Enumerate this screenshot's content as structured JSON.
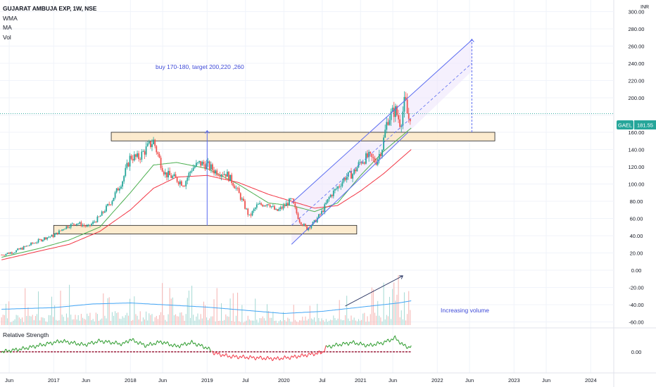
{
  "legend": {
    "title": "GUJARAT AMBUJA EXP, 1W, NSE",
    "indicators": [
      "WMA",
      "MA",
      "Vol"
    ],
    "rs_label": "Relative Strength"
  },
  "currency": "INR",
  "price_label": {
    "ticker": "GAEL",
    "value": "181.55"
  },
  "annotations": {
    "plan": "buy 170-180, target 200,220 ,260",
    "volume_note": "Increasing volume"
  },
  "colors": {
    "up": "#26a69a",
    "down": "#ef5350",
    "wma": "#4caf50",
    "ma": "#f23645",
    "volume_ma": "#42a5f5",
    "channel": "#5b6cf0",
    "box_fill": "#fce8c6",
    "rs_line": "#2e9c2e",
    "rs_neg": "#f23645",
    "annotation_text": "#3f4bd8"
  },
  "chart_data": [
    {
      "type": "candlestick",
      "title": "GUJARAT AMBUJA EXP, 1W, NSE",
      "y_axis": {
        "ticks": [
          300,
          280,
          260,
          240,
          220,
          200,
          180,
          160,
          140,
          120,
          100,
          80,
          60,
          40,
          20,
          0,
          -20,
          -40,
          -60
        ],
        "labels": [
          "300.00",
          "280.00",
          "260.00",
          "240.00",
          "220.00",
          "200.00",
          "",
          "160.00",
          "140.00",
          "120.00",
          "100.00",
          "80.00",
          "60.00",
          "40.00",
          "20.00",
          "0.00",
          "-20.00",
          "-40.00",
          "-60.00"
        ],
        "range": [
          -62,
          302
        ]
      },
      "x_axis": {
        "range": [
          2016.3,
          2024.3
        ],
        "ticks": [
          2016.42,
          2017,
          2017.42,
          2018,
          2018.42,
          2019,
          2019.5,
          2020,
          2020.5,
          2021,
          2021.42,
          2022,
          2022.42,
          2023,
          2023.42,
          2024
        ],
        "labels": [
          "Jun",
          "2017",
          "Jun",
          "2018",
          "Jun",
          "2019",
          "Jul",
          "2020",
          "Jul",
          "2021",
          "Jun",
          "2022",
          "Jun",
          "2023",
          "Jun",
          "2024"
        ]
      },
      "price_path": [
        [
          2016.32,
          18
        ],
        [
          2016.5,
          22
        ],
        [
          2016.7,
          30
        ],
        [
          2016.9,
          38
        ],
        [
          2017.0,
          40
        ],
        [
          2017.15,
          50
        ],
        [
          2017.3,
          55
        ],
        [
          2017.45,
          50
        ],
        [
          2017.6,
          62
        ],
        [
          2017.75,
          80
        ],
        [
          2017.9,
          105
        ],
        [
          2018.0,
          132
        ],
        [
          2018.1,
          130
        ],
        [
          2018.2,
          140
        ],
        [
          2018.3,
          150
        ],
        [
          2018.38,
          128
        ],
        [
          2018.45,
          112
        ],
        [
          2018.55,
          108
        ],
        [
          2018.7,
          100
        ],
        [
          2018.8,
          118
        ],
        [
          2018.9,
          124
        ],
        [
          2019.0,
          122
        ],
        [
          2019.1,
          115
        ],
        [
          2019.25,
          112
        ],
        [
          2019.35,
          100
        ],
        [
          2019.45,
          82
        ],
        [
          2019.55,
          62
        ],
        [
          2019.65,
          75
        ],
        [
          2019.8,
          78
        ],
        [
          2019.9,
          68
        ],
        [
          2020.0,
          74
        ],
        [
          2020.1,
          82
        ],
        [
          2020.2,
          58
        ],
        [
          2020.3,
          48
        ],
        [
          2020.4,
          56
        ],
        [
          2020.5,
          68
        ],
        [
          2020.6,
          86
        ],
        [
          2020.7,
          96
        ],
        [
          2020.8,
          108
        ],
        [
          2020.9,
          112
        ],
        [
          2021.0,
          126
        ],
        [
          2021.1,
          132
        ],
        [
          2021.2,
          126
        ],
        [
          2021.28,
          142
        ],
        [
          2021.35,
          175
        ],
        [
          2021.45,
          186
        ],
        [
          2021.52,
          170
        ],
        [
          2021.58,
          198
        ],
        [
          2021.62,
          175
        ],
        [
          2021.66,
          182
        ]
      ],
      "series": [
        {
          "name": "WMA",
          "values": [
            [
              2016.32,
              15
            ],
            [
              2016.8,
              25
            ],
            [
              2017.2,
              35
            ],
            [
              2017.6,
              50
            ],
            [
              2018.0,
              90
            ],
            [
              2018.3,
              122
            ],
            [
              2018.6,
              125
            ],
            [
              2019.0,
              118
            ],
            [
              2019.4,
              100
            ],
            [
              2019.8,
              78
            ],
            [
              2020.1,
              75
            ],
            [
              2020.4,
              68
            ],
            [
              2020.7,
              78
            ],
            [
              2021.0,
              110
            ],
            [
              2021.3,
              138
            ],
            [
              2021.66,
              165
            ]
          ]
        },
        {
          "name": "MA",
          "values": [
            [
              2016.32,
              12
            ],
            [
              2016.8,
              22
            ],
            [
              2017.2,
              30
            ],
            [
              2017.6,
              45
            ],
            [
              2018.0,
              70
            ],
            [
              2018.3,
              95
            ],
            [
              2018.6,
              108
            ],
            [
              2019.0,
              110
            ],
            [
              2019.4,
              102
            ],
            [
              2019.8,
              88
            ],
            [
              2020.1,
              80
            ],
            [
              2020.4,
              72
            ],
            [
              2020.7,
              75
            ],
            [
              2021.0,
              92
            ],
            [
              2021.3,
              112
            ],
            [
              2021.66,
              140
            ]
          ]
        }
      ],
      "drawings": {
        "support_zone": {
          "x": [
            2017.0,
            2020.95
          ],
          "y": [
            42,
            52
          ]
        },
        "resistance_zone": {
          "x": [
            2017.75,
            2022.75
          ],
          "y": [
            150,
            160
          ]
        },
        "breakout_arrow": {
          "x": 2019.0,
          "y": [
            52,
            162
          ]
        },
        "target_arrow": {
          "x": 2022.45,
          "y": [
            160,
            268
          ]
        },
        "channel": {
          "lower": [
            [
              2020.1,
              30
            ],
            [
              2021.62,
              160
            ]
          ],
          "upper": [
            [
              2020.1,
              78
            ],
            [
              2022.45,
              267
            ]
          ],
          "mid": [
            [
              2020.1,
              52
            ],
            [
              2022.45,
              240
            ]
          ]
        }
      }
    },
    {
      "type": "bar",
      "name": "Vol",
      "note": "Increasing volume",
      "volume_ma": [
        [
          2016.32,
          0.3
        ],
        [
          2017.0,
          0.33
        ],
        [
          2017.5,
          0.4
        ],
        [
          2018.0,
          0.42
        ],
        [
          2018.5,
          0.38
        ],
        [
          2019.0,
          0.34
        ],
        [
          2019.5,
          0.28
        ],
        [
          2020.0,
          0.22
        ],
        [
          2020.5,
          0.26
        ],
        [
          2021.0,
          0.34
        ],
        [
          2021.5,
          0.42
        ],
        [
          2021.66,
          0.46
        ]
      ]
    },
    {
      "type": "line",
      "name": "Relative Strength",
      "y_axis": {
        "ticks": [
          0
        ],
        "labels": [
          "0.00"
        ]
      },
      "values": [
        [
          2016.32,
          0
        ],
        [
          2016.6,
          4
        ],
        [
          2016.9,
          10
        ],
        [
          2017.1,
          14
        ],
        [
          2017.4,
          9
        ],
        [
          2017.6,
          14
        ],
        [
          2017.9,
          10
        ],
        [
          2018.0,
          16
        ],
        [
          2018.2,
          8
        ],
        [
          2018.4,
          13
        ],
        [
          2018.6,
          7
        ],
        [
          2018.8,
          12
        ],
        [
          2019.0,
          5
        ],
        [
          2019.1,
          -2
        ],
        [
          2019.3,
          -6
        ],
        [
          2019.5,
          -7
        ],
        [
          2019.7,
          -8
        ],
        [
          2019.9,
          -9
        ],
        [
          2020.1,
          -7
        ],
        [
          2020.3,
          -4
        ],
        [
          2020.5,
          -1
        ],
        [
          2020.55,
          6
        ],
        [
          2020.7,
          9
        ],
        [
          2020.9,
          12
        ],
        [
          2021.1,
          8
        ],
        [
          2021.3,
          12
        ],
        [
          2021.45,
          18
        ],
        [
          2021.55,
          9
        ],
        [
          2021.62,
          6
        ],
        [
          2021.66,
          7
        ]
      ]
    }
  ]
}
